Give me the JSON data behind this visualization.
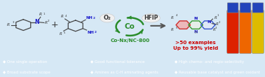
{
  "bg_top_color": "#d6e8f5",
  "bottom_panel_color": "#3d6aad",
  "bottom_text_color": "#ffffff",
  "bottom_items_row1": [
    "◆ One single operation",
    "◆ Good functional tolerance",
    "◆ High chemo- and regio-selectivity"
  ],
  "bottom_items_row2": [
    "◆ Broad substrate scope",
    "◆ Amines as C-H aminating agents",
    "◆ Reusable base catalyst and green oxidant"
  ],
  "catalyst_label": "Co-Nx/NC-800",
  "catalyst_color": "#2a8c2a",
  "o2_label": "O₂",
  "hfip_label": "HFIP",
  "yield_text_line1": ">50 examples",
  "yield_text_line2": "Up to 99% yield",
  "yield_color": "#cc0000",
  "recycle_color": "#2a8c2a",
  "bond_color": "#444444",
  "N_color": "#1a1acc",
  "R_color": "#333333",
  "plus_color": "#333333",
  "arrow_color": "#555555",
  "o2_circle_color": "#f0f0f0",
  "hfip_circle_color": "#f0f0f0",
  "vial_bg": "#111122",
  "vial_colors": [
    "#dd2200",
    "#ee6600",
    "#ddbb00"
  ],
  "vial_cap_color": "#2244bb",
  "phenazine_left_fill": "#f0b0b0",
  "phenazine_mid_fill": "#e8f0e8",
  "phenazine_right_fill": "#e0e8f8",
  "phenazine_border_left": "#cc3333",
  "phenazine_border_mid": "#339933",
  "phenazine_border_right": "#3355cc"
}
